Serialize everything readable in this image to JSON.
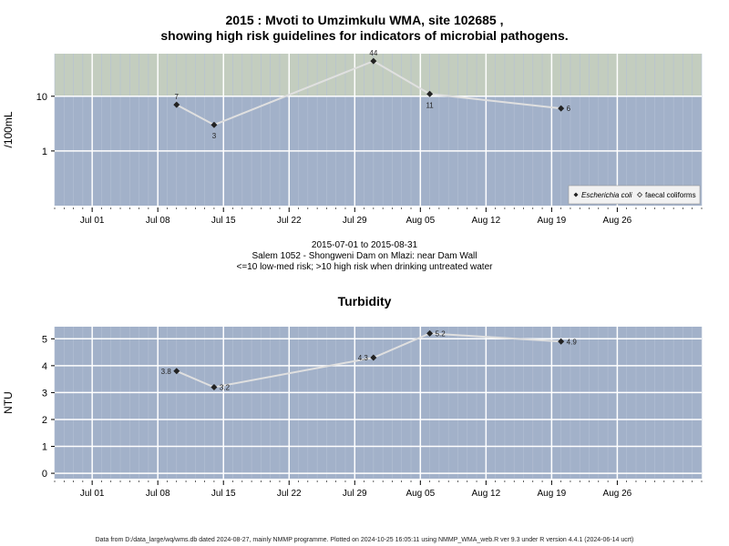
{
  "chart_data": [
    {
      "type": "line",
      "title": "2015 : Mvoti to Umzimkulu WMA, site 102685 ,",
      "title_line2": "showing high risk guidelines for indicators of microbial pathogens.",
      "ylabel": "/100mL",
      "y_scale": "log",
      "ylim": [
        0.1,
        60
      ],
      "y_ticks": [
        {
          "value": 1,
          "label": "1"
        },
        {
          "value": 10,
          "label": "10"
        }
      ],
      "xlim": [
        "2015-06-27",
        "2015-09-04"
      ],
      "x_ticks": [
        {
          "date": "2015-07-01",
          "label": "Jul 01"
        },
        {
          "date": "2015-07-08",
          "label": "Jul 08"
        },
        {
          "date": "2015-07-15",
          "label": "Jul 15"
        },
        {
          "date": "2015-07-22",
          "label": "Jul 22"
        },
        {
          "date": "2015-07-29",
          "label": "Jul 29"
        },
        {
          "date": "2015-08-05",
          "label": "Aug 05"
        },
        {
          "date": "2015-08-12",
          "label": "Aug 12"
        },
        {
          "date": "2015-08-19",
          "label": "Aug 19"
        },
        {
          "date": "2015-08-26",
          "label": "Aug 26"
        }
      ],
      "threshold": 10,
      "band_colors": {
        "high": "#c3cdbf",
        "low": "#a2b1c9"
      },
      "grid": true,
      "legend_position": "bottom-right",
      "legend": [
        "Escherichia coli",
        "faecal coliforms"
      ],
      "series": [
        {
          "name": "Escherichia coli",
          "points": [
            {
              "x": "2015-07-10",
              "y": 7,
              "label": "7",
              "label_pos": "above"
            },
            {
              "x": "2015-07-14",
              "y": 3,
              "label": "3",
              "label_pos": "below"
            },
            {
              "x": "2015-07-31",
              "y": 44,
              "label": "44",
              "label_pos": "above"
            },
            {
              "x": "2015-08-06",
              "y": 11,
              "label": "11",
              "label_pos": "below"
            },
            {
              "x": "2015-08-20",
              "y": 6,
              "label": "6",
              "label_pos": "right"
            }
          ]
        }
      ],
      "caption_lines": [
        "2015-07-01 to 2015-08-31",
        "Salem 1052 - Shongweni Dam on Mlazi: near Dam Wall",
        "<=10 low-med risk; >10 high risk when drinking untreated water"
      ]
    },
    {
      "type": "line",
      "title": "Turbidity",
      "ylabel": "NTU",
      "ylim": [
        -0.2,
        5.45
      ],
      "y_ticks": [
        {
          "value": 0,
          "label": "0"
        },
        {
          "value": 1,
          "label": "1"
        },
        {
          "value": 2,
          "label": "2"
        },
        {
          "value": 3,
          "label": "3"
        },
        {
          "value": 4,
          "label": "4"
        },
        {
          "value": 5,
          "label": "5"
        }
      ],
      "xlim": [
        "2015-06-27",
        "2015-09-04"
      ],
      "x_ticks": [
        {
          "date": "2015-07-01",
          "label": "Jul 01"
        },
        {
          "date": "2015-07-08",
          "label": "Jul 08"
        },
        {
          "date": "2015-07-15",
          "label": "Jul 15"
        },
        {
          "date": "2015-07-22",
          "label": "Jul 22"
        },
        {
          "date": "2015-07-29",
          "label": "Jul 29"
        },
        {
          "date": "2015-08-05",
          "label": "Aug 05"
        },
        {
          "date": "2015-08-12",
          "label": "Aug 12"
        },
        {
          "date": "2015-08-19",
          "label": "Aug 19"
        },
        {
          "date": "2015-08-26",
          "label": "Aug 26"
        }
      ],
      "band_colors": {
        "low": "#a2b1c9"
      },
      "grid": true,
      "series": [
        {
          "points": [
            {
              "x": "2015-07-10",
              "y": 3.8,
              "label": "3.8",
              "label_pos": "left"
            },
            {
              "x": "2015-07-14",
              "y": 3.2,
              "label": "3.2",
              "label_pos": "right"
            },
            {
              "x": "2015-07-31",
              "y": 4.3,
              "label": "4.3",
              "label_pos": "left"
            },
            {
              "x": "2015-08-06",
              "y": 5.2,
              "label": "5.2",
              "label_pos": "right"
            },
            {
              "x": "2015-08-20",
              "y": 4.9,
              "label": "4.9",
              "label_pos": "right"
            }
          ]
        }
      ]
    }
  ],
  "footer": "Data from D:/data_large/wq/wms.db dated 2024-08-27, mainly NMMP programme. Plotted on 2024-10-25 16:05:11 using NMMP_WMA_web.R ver 9.3 under R version 4.4.1 (2024-06-14 ucrt)"
}
